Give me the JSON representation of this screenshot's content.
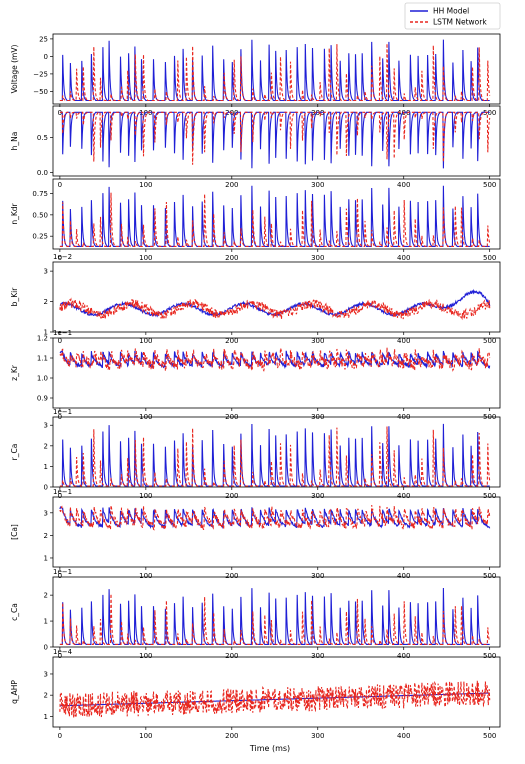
{
  "colors": {
    "hh": "#1f1fd6",
    "lstm": "#e8271f"
  },
  "legend": {
    "placement": "top-right",
    "entries": [
      "HH Model",
      "LSTM Network"
    ]
  },
  "chart_data": {
    "type": "line",
    "xlabel": "Time (ms)",
    "xlim": [
      -8,
      512
    ],
    "xticks": [
      0,
      100,
      200,
      300,
      400,
      500
    ],
    "xtick_labels": [
      "0",
      "100",
      "200",
      "300",
      "400",
      "500"
    ],
    "series_names": [
      "HH Model",
      "LSTM Network"
    ],
    "panels": [
      {
        "id": "voltage",
        "ylabel": "Voltage (mV)",
        "multiplier": "",
        "ylim": [
          -68,
          32
        ],
        "yticks": [
          25,
          0,
          -25,
          -50
        ],
        "ytick_labels": [
          "25",
          "0",
          "−25",
          "−50"
        ],
        "shape": "spike",
        "base": -63,
        "peak": 25,
        "trend": 0,
        "noise": 0
      },
      {
        "id": "h_na",
        "ylabel": "h_Na",
        "multiplier": "",
        "ylim": [
          -0.05,
          0.95
        ],
        "yticks": [
          0.0,
          0.5
        ],
        "ytick_labels": [
          "0.0",
          "0.5"
        ],
        "shape": "inverse",
        "base": 0.86,
        "peak": 0.05,
        "trend": 0,
        "noise": 0
      },
      {
        "id": "n_kdr",
        "ylabel": "n_Kdr",
        "multiplier": "",
        "ylim": [
          0.1,
          0.92
        ],
        "yticks": [
          0.25,
          0.5,
          0.75
        ],
        "ytick_labels": [
          "0.25",
          "0.50",
          "0.75"
        ],
        "shape": "spike",
        "base": 0.13,
        "peak": 0.85,
        "trend": 0,
        "noise": 0
      },
      {
        "id": "b_kir",
        "ylabel": "b_Kir",
        "multiplier": "1e−2",
        "ylim": [
          1.0,
          3.3
        ],
        "yticks": [
          1,
          2,
          3
        ],
        "ytick_labels": [
          "1",
          "2",
          "3"
        ],
        "shape": "wobble",
        "base": 1.75,
        "peak": 2.1,
        "trend": 0,
        "noise": 0.15
      },
      {
        "id": "z_kr",
        "ylabel": "z_Kr",
        "multiplier": "1e−1",
        "ylim": [
          0.85,
          1.2
        ],
        "yticks": [
          0.9,
          1.0,
          1.1,
          1.2
        ],
        "ytick_labels": [
          "0.9",
          "1.0",
          "1.1",
          "1.2"
        ],
        "shape": "saw",
        "base": 1.0,
        "peak": 1.13,
        "trend": 0,
        "noise": 0.03
      },
      {
        "id": "r_ca",
        "ylabel": "r_Ca",
        "multiplier": "1e−1",
        "ylim": [
          0,
          3.4
        ],
        "yticks": [
          0,
          1,
          2,
          3
        ],
        "ytick_labels": [
          "0",
          "1",
          "2",
          "3"
        ],
        "shape": "spike",
        "base": 0.05,
        "peak": 3.1,
        "trend": 0,
        "noise": 0
      },
      {
        "id": "ca_conc",
        "ylabel": "[Ca]",
        "multiplier": "1e−1",
        "ylim": [
          0.6,
          3.7
        ],
        "yticks": [
          1,
          2,
          3
        ],
        "ytick_labels": [
          "1",
          "2",
          "3"
        ],
        "shape": "saw",
        "base": 1.7,
        "peak": 3.2,
        "trend": 0,
        "noise": 0.2
      },
      {
        "id": "c_ca",
        "ylabel": "c_Ca",
        "multiplier": "1e−1",
        "ylim": [
          0,
          2.7
        ],
        "yticks": [
          0,
          1,
          2
        ],
        "ytick_labels": [
          "0",
          "1",
          "2"
        ],
        "shape": "spike",
        "base": 0.1,
        "peak": 2.3,
        "trend": 0,
        "noise": 0
      },
      {
        "id": "q_ahp",
        "ylabel": "q_AHP",
        "multiplier": "1e−4",
        "ylim": [
          0.5,
          3.8
        ],
        "yticks": [
          1,
          2,
          3
        ],
        "ytick_labels": [
          "1",
          "2",
          "3"
        ],
        "shape": "ramp",
        "base": 1.5,
        "peak": 2.1,
        "trend": 0,
        "noise": 0.5
      }
    ]
  }
}
